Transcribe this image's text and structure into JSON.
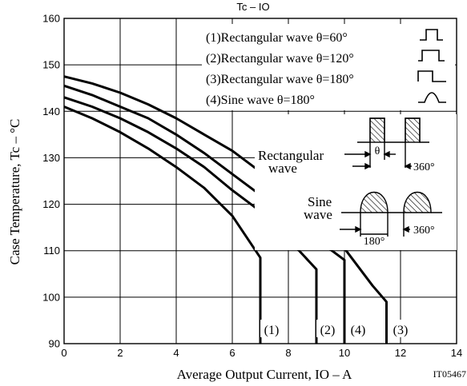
{
  "chart_data": {
    "type": "line",
    "title": "Tc – IO",
    "xlabel": "Average Output Current, IO – A",
    "ylabel": "Case Temperature, Tc – °C",
    "code": "IT05467",
    "xlim": [
      0,
      14
    ],
    "ylim": [
      90,
      160
    ],
    "x_ticks": [
      0,
      2,
      4,
      6,
      8,
      10,
      12,
      14
    ],
    "y_ticks": [
      90,
      100,
      110,
      120,
      130,
      140,
      150,
      160
    ],
    "grid": true,
    "series": [
      {
        "name": "(1)Rectangular wave θ=60°",
        "tag": "(1)",
        "points": [
          [
            0,
            141
          ],
          [
            1,
            138.5
          ],
          [
            2,
            135.5
          ],
          [
            3,
            132
          ],
          [
            4,
            128
          ],
          [
            5,
            123.5
          ],
          [
            6,
            117.5
          ],
          [
            7,
            108.5
          ],
          [
            7,
            90
          ]
        ]
      },
      {
        "name": "(2)Rectangular wave θ=120°",
        "tag": "(2)",
        "points": [
          [
            0,
            143
          ],
          [
            1,
            141
          ],
          [
            2,
            138.5
          ],
          [
            3,
            135.5
          ],
          [
            4,
            132
          ],
          [
            5,
            128
          ],
          [
            6,
            123
          ],
          [
            7,
            118.5
          ],
          [
            8,
            112.5
          ],
          [
            9,
            106
          ],
          [
            9,
            90
          ]
        ]
      },
      {
        "name": "(3)Rectangular wave θ=180°",
        "tag": "(3)",
        "points": [
          [
            0,
            147.5
          ],
          [
            1,
            146
          ],
          [
            2,
            144
          ],
          [
            3,
            141.5
          ],
          [
            4,
            138.5
          ],
          [
            5,
            135
          ],
          [
            6,
            131.5
          ],
          [
            7,
            127
          ],
          [
            8,
            122.5
          ],
          [
            9,
            117
          ],
          [
            10,
            110.5
          ],
          [
            11,
            102.5
          ],
          [
            11.5,
            99
          ],
          [
            11.5,
            90
          ]
        ]
      },
      {
        "name": "(4)Sine wave θ=180°",
        "tag": "(4)",
        "points": [
          [
            0,
            145.5
          ],
          [
            1,
            143.5
          ],
          [
            2,
            141
          ],
          [
            3,
            138.5
          ],
          [
            4,
            135
          ],
          [
            5,
            131
          ],
          [
            6,
            126.5
          ],
          [
            7,
            122
          ],
          [
            8,
            117.5
          ],
          [
            9,
            112.5
          ],
          [
            10,
            108
          ],
          [
            10,
            90
          ]
        ]
      }
    ],
    "inset": {
      "rect_label_1": "Rectangular",
      "rect_label_2": "wave",
      "sine_label_1": "Sine",
      "sine_label_2": "wave",
      "theta": "θ",
      "period": "360°",
      "half_period": "180°"
    }
  }
}
